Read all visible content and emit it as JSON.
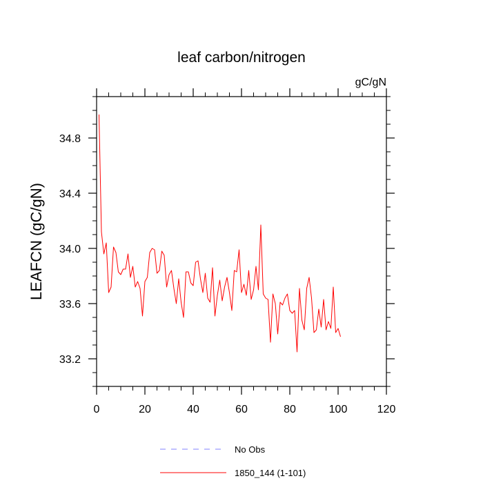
{
  "chart_data": {
    "type": "line",
    "title": "leaf carbon/nitrogen",
    "units": "gC/gN",
    "xlabel": "",
    "ylabel": "LEAFCN  (gC/gN)",
    "xlim": [
      0,
      120
    ],
    "ylim": [
      33.0,
      35.1
    ],
    "x_ticks": [
      0,
      20,
      40,
      60,
      80,
      100,
      120
    ],
    "x_tick_labels": [
      "0",
      "20",
      "40",
      "60",
      "80",
      "100",
      "120"
    ],
    "y_ticks": [
      33.2,
      33.6,
      34.0,
      34.4,
      34.8
    ],
    "y_tick_labels": [
      "33.2",
      "33.6",
      "34.0",
      "34.4",
      "34.8"
    ],
    "grid": false,
    "legend": [
      {
        "label": "No Obs",
        "color": "#8080ff",
        "style": "dashed"
      },
      {
        "label": "1850_144 (1-101)",
        "color": "#ff0000",
        "style": "solid"
      }
    ],
    "series": [
      {
        "name": "1850_144 (1-101)",
        "color": "#ff0000",
        "x": [
          1,
          2,
          3,
          4,
          5,
          6,
          7,
          8,
          9,
          10,
          11,
          12,
          13,
          14,
          15,
          16,
          17,
          18,
          19,
          20,
          21,
          22,
          23,
          24,
          25,
          26,
          27,
          28,
          29,
          30,
          31,
          32,
          33,
          34,
          35,
          36,
          37,
          38,
          39,
          40,
          41,
          42,
          43,
          44,
          45,
          46,
          47,
          48,
          49,
          50,
          51,
          52,
          53,
          54,
          55,
          56,
          57,
          58,
          59,
          60,
          61,
          62,
          63,
          64,
          65,
          66,
          67,
          68,
          69,
          70,
          71,
          72,
          73,
          74,
          75,
          76,
          77,
          78,
          79,
          80,
          81,
          82,
          83,
          84,
          85,
          86,
          87,
          88,
          89,
          90,
          91,
          92,
          93,
          94,
          95,
          96,
          97,
          98,
          99,
          100,
          101
        ],
        "values": [
          34.97,
          34.12,
          33.96,
          34.04,
          33.68,
          33.72,
          34.01,
          33.97,
          33.83,
          33.81,
          33.85,
          33.85,
          33.96,
          33.79,
          33.87,
          33.72,
          33.76,
          33.71,
          33.51,
          33.76,
          33.79,
          33.97,
          34.0,
          33.99,
          33.82,
          33.84,
          33.98,
          33.95,
          33.72,
          33.81,
          33.84,
          33.71,
          33.6,
          33.78,
          33.61,
          33.5,
          33.83,
          33.83,
          33.75,
          33.73,
          33.9,
          33.91,
          33.78,
          33.68,
          33.82,
          33.64,
          33.61,
          33.86,
          33.51,
          33.66,
          33.77,
          33.62,
          33.72,
          33.79,
          33.68,
          33.55,
          33.84,
          33.83,
          33.99,
          33.68,
          33.74,
          33.66,
          33.84,
          33.63,
          33.7,
          33.87,
          33.7,
          34.17,
          33.67,
          33.64,
          33.63,
          33.32,
          33.67,
          33.6,
          33.38,
          33.61,
          33.59,
          33.64,
          33.67,
          33.55,
          33.53,
          33.55,
          33.25,
          33.71,
          33.48,
          33.41,
          33.71,
          33.79,
          33.64,
          33.39,
          33.41,
          33.56,
          33.43,
          33.63,
          33.41,
          33.47,
          33.42,
          33.72,
          33.39,
          33.42,
          33.36
        ]
      }
    ]
  }
}
